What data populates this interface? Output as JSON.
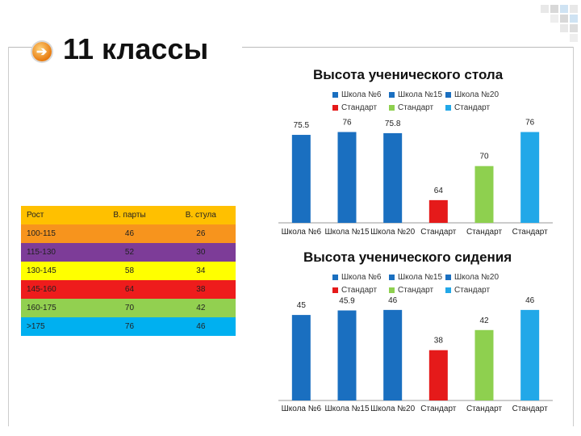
{
  "page_title": "11 классы",
  "colors": {
    "blue": "#1a6fc0",
    "red": "#e51a1a",
    "green": "#8ed04f",
    "cyan": "#22a8e8"
  },
  "table": {
    "headers": [
      "Рост",
      "В. парты",
      "В. стула"
    ],
    "rows": [
      {
        "cells": [
          "100-115",
          "46",
          "26"
        ],
        "color": "#f7941d"
      },
      {
        "cells": [
          "115-130",
          "52",
          "30"
        ],
        "color": "#7d3c98"
      },
      {
        "cells": [
          "130-145",
          "58",
          "34"
        ],
        "color": "#ffff00"
      },
      {
        "cells": [
          "145-160",
          "64",
          "38"
        ],
        "color": "#ee1c1c"
      },
      {
        "cells": [
          "160-175",
          "70",
          "42"
        ],
        "color": "#92d050"
      },
      {
        "cells": [
          ">175",
          "76",
          "46"
        ],
        "color": "#00b0f0"
      }
    ],
    "header_color": "#ffc000"
  },
  "chart_data": [
    {
      "type": "bar",
      "title": "Высота ученического стола",
      "categories": [
        "Школа №6",
        "Школа №15",
        "Школа №20",
        "Стандарт",
        "Стандарт",
        "Стандарт"
      ],
      "values": [
        75.5,
        76,
        75.8,
        64,
        70,
        76
      ],
      "labels": [
        "75.5",
        "76",
        "75.8",
        "64",
        "70",
        "76"
      ],
      "colors": [
        "#1a6fc0",
        "#1a6fc0",
        "#1a6fc0",
        "#e51a1a",
        "#8ed04f",
        "#22a8e8"
      ],
      "legend": [
        "Школа №6",
        "Школа №15",
        "Школа №20",
        "Стандарт",
        "Стандарт",
        "Стандарт"
      ],
      "ylim": [
        60,
        76.5
      ]
    },
    {
      "type": "bar",
      "title": "Высота ученического сидения",
      "categories": [
        "Школа №6",
        "Школа №15",
        "Школа №20",
        "Стандарт",
        "Стандарт",
        "Стандарт"
      ],
      "values": [
        45,
        45.9,
        46,
        38,
        42,
        46
      ],
      "labels": [
        "45",
        "45.9",
        "46",
        "38",
        "42",
        "46"
      ],
      "colors": [
        "#1a6fc0",
        "#1a6fc0",
        "#1a6fc0",
        "#e51a1a",
        "#8ed04f",
        "#22a8e8"
      ],
      "legend": [
        "Школа №6",
        "Школа №15",
        "Школа №20",
        "Стандарт",
        "Стандарт",
        "Стандарт"
      ],
      "ylim": [
        28,
        46.3
      ]
    }
  ]
}
